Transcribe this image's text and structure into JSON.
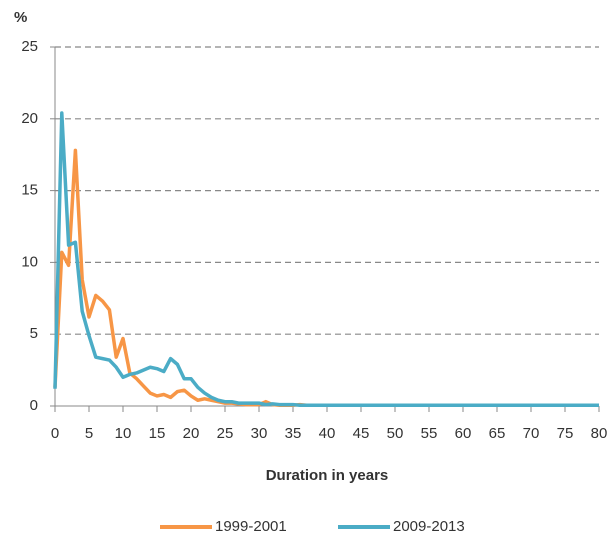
{
  "chart_data": {
    "type": "line",
    "y_label": "%",
    "x_label": "Duration in years",
    "x": [
      0,
      1,
      2,
      3,
      4,
      5,
      6,
      7,
      8,
      9,
      10,
      11,
      12,
      13,
      14,
      15,
      16,
      17,
      18,
      19,
      20,
      21,
      22,
      23,
      24,
      25,
      26,
      27,
      28,
      29,
      30,
      31,
      32,
      33,
      34,
      35,
      36,
      37,
      38,
      39,
      40,
      41,
      42,
      43,
      44,
      45,
      46,
      47,
      48,
      49,
      50,
      51,
      52,
      53,
      54,
      55,
      56,
      57,
      58,
      59,
      60,
      61,
      62,
      63,
      64,
      65,
      66,
      67,
      68,
      69,
      70,
      71,
      72,
      73,
      74,
      75,
      76,
      77,
      78,
      79,
      80
    ],
    "series": [
      {
        "name": "1999-2001",
        "color": "#f79646",
        "values": [
          1.3,
          10.7,
          9.8,
          17.8,
          8.8,
          6.2,
          7.7,
          7.3,
          6.7,
          3.4,
          4.7,
          2.3,
          1.9,
          1.4,
          0.9,
          0.7,
          0.8,
          0.6,
          1.0,
          1.1,
          0.7,
          0.4,
          0.5,
          0.4,
          0.3,
          0.2,
          0.2,
          0.15,
          0.1,
          0.1,
          0.1,
          0.3,
          0.1,
          0.05,
          0.05,
          0.05,
          0.1,
          0.05,
          0.05,
          0.05,
          0.05,
          0.05,
          0.05,
          0.05,
          0.05,
          0.05,
          0.05,
          0.05,
          0.05,
          0.05,
          0.05,
          0.05,
          0.05,
          0.05,
          0.05,
          0.05,
          0.05,
          0.05,
          0.05,
          0.05,
          0.05,
          0.05,
          0.05,
          0.05,
          0.05,
          0.05,
          0.05,
          0.05,
          0.05,
          0.05,
          0.05,
          0.05,
          0.05,
          0.05,
          0.05,
          0.05,
          0.05,
          0.05,
          0.05,
          0.05,
          0.05
        ]
      },
      {
        "name": "2009-2013",
        "color": "#4bacc6",
        "values": [
          1.2,
          20.4,
          11.2,
          11.4,
          6.6,
          4.9,
          3.4,
          3.3,
          3.2,
          2.7,
          2.0,
          2.2,
          2.3,
          2.5,
          2.7,
          2.6,
          2.4,
          3.3,
          2.9,
          1.9,
          1.9,
          1.3,
          0.9,
          0.6,
          0.4,
          0.3,
          0.3,
          0.2,
          0.2,
          0.2,
          0.2,
          0.1,
          0.15,
          0.1,
          0.1,
          0.1,
          0.05,
          0.05,
          0.05,
          0.05,
          0.05,
          0.05,
          0.05,
          0.05,
          0.05,
          0.05,
          0.05,
          0.05,
          0.05,
          0.05,
          0.05,
          0.05,
          0.05,
          0.05,
          0.05,
          0.05,
          0.05,
          0.05,
          0.05,
          0.05,
          0.05,
          0.05,
          0.05,
          0.05,
          0.05,
          0.05,
          0.05,
          0.05,
          0.05,
          0.05,
          0.05,
          0.05,
          0.05,
          0.05,
          0.05,
          0.05,
          0.05,
          0.05,
          0.05,
          0.05,
          0.05
        ]
      }
    ],
    "xlim": [
      0,
      80
    ],
    "xticks": [
      0,
      5,
      10,
      15,
      20,
      25,
      30,
      35,
      40,
      45,
      50,
      55,
      60,
      65,
      70,
      75,
      80
    ],
    "ylim": [
      0,
      25
    ],
    "yticks": [
      0,
      5,
      10,
      15,
      20,
      25
    ],
    "grid": true,
    "legend": "bottom"
  }
}
